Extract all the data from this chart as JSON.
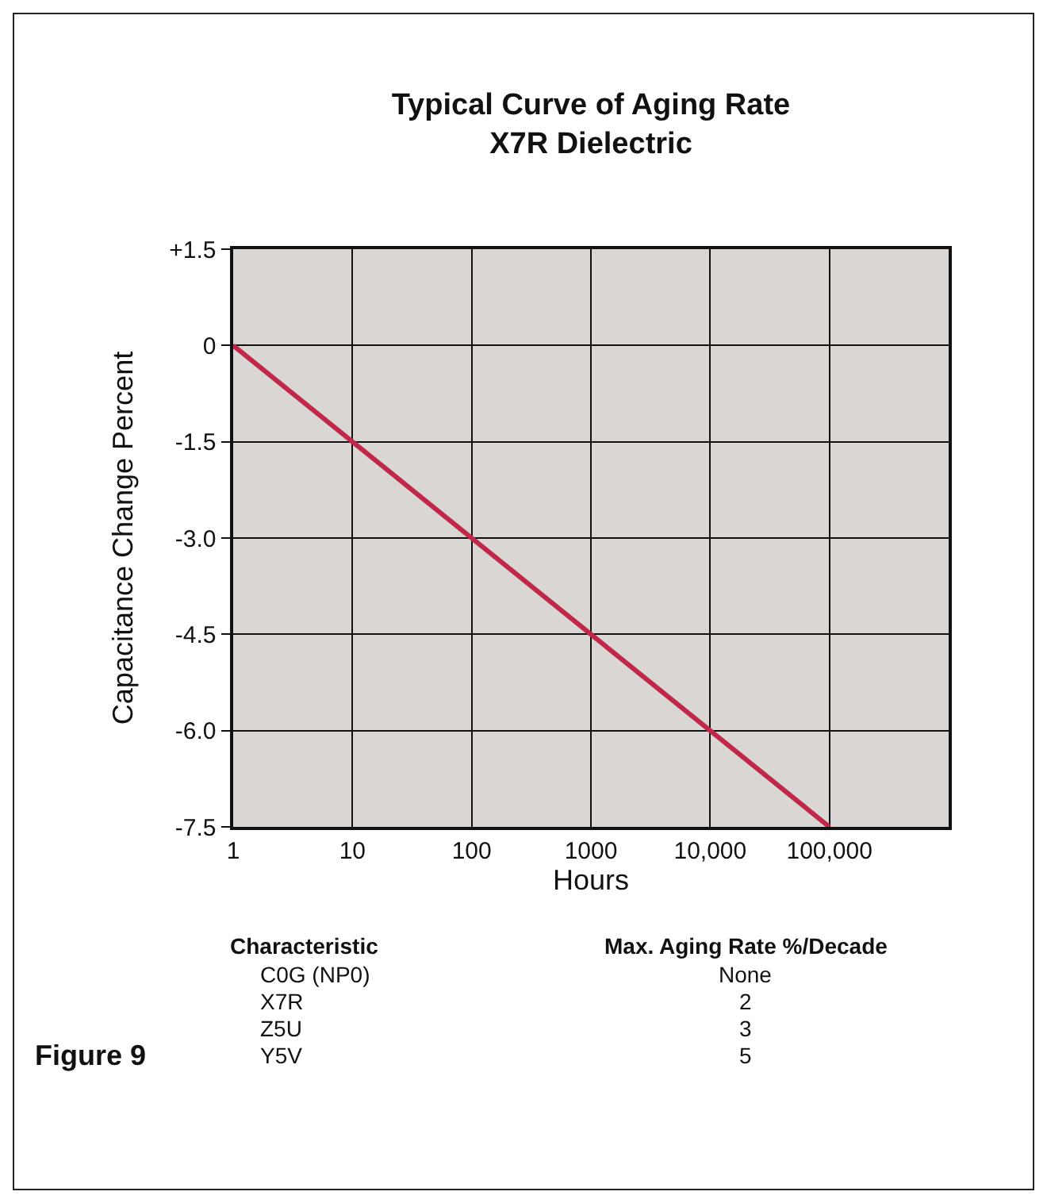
{
  "chart_data": {
    "type": "line",
    "title": "Typical Curve of Aging Rate\nX7R Dielectric",
    "xlabel": "Hours",
    "ylabel": "Capacitance Change Percent",
    "x": [
      1,
      100000
    ],
    "series": [
      {
        "color": "#c0284a",
        "values": [
          0,
          -7.5
        ]
      }
    ],
    "log": "x",
    "xlim": [
      1,
      1000000
    ],
    "xticks": [
      1,
      10,
      100,
      1000,
      {
        "value": 10000,
        "label": "10,000"
      },
      {
        "value": 100000,
        "label": "100,000"
      },
      {
        "value": 1000000,
        "label": null
      }
    ],
    "ylim": [
      -7.5,
      1.5
    ],
    "yticks": [
      {
        "value": 1.5,
        "label": "+1.5"
      },
      0,
      -1.5,
      {
        "value": -3,
        "label": "-3.0"
      },
      -4.5,
      {
        "value": -6,
        "label": "-6.0"
      },
      -7.5
    ],
    "grid": true,
    "marker": "none",
    "line_style": "solid",
    "annotations": [
      "Characteristic",
      "Max. Aging Rate %/Decade",
      "C0G (NP0)",
      "None",
      "X7R",
      "2",
      "Z5U",
      "3",
      "Y5V",
      "5",
      "Figure 9"
    ]
  }
}
